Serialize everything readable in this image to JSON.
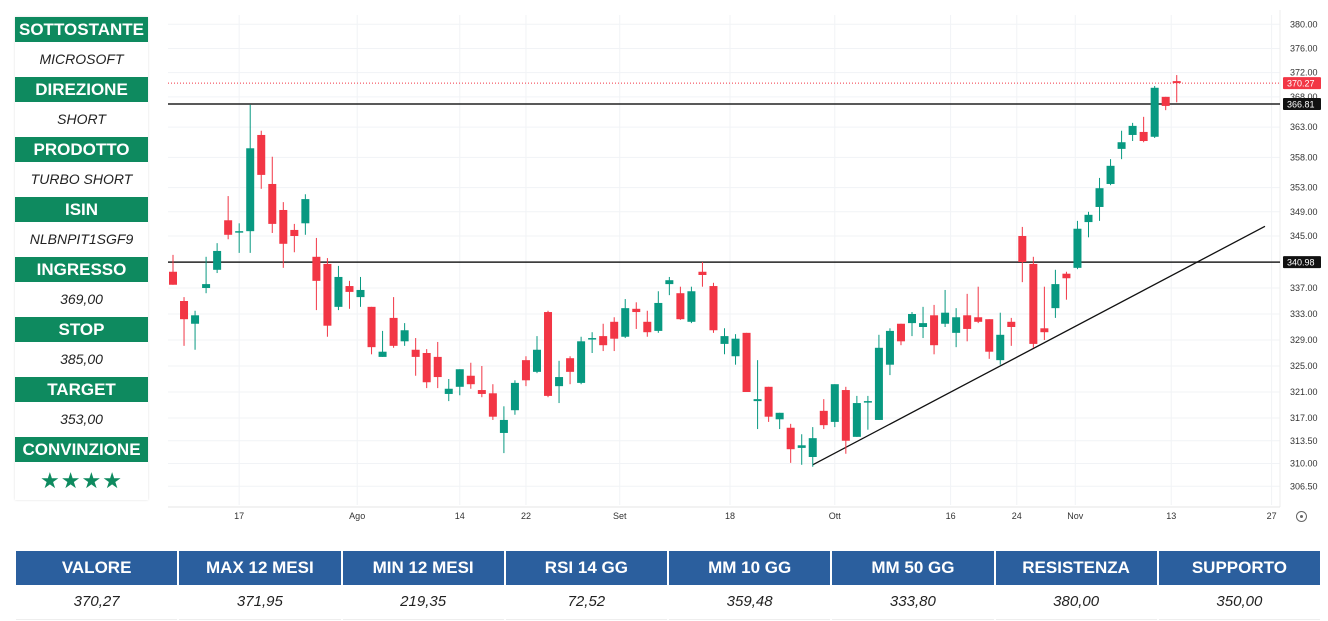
{
  "panel": [
    {
      "label": "SOTTOSTANTE",
      "value": "MICROSOFT"
    },
    {
      "label": "DIREZIONE",
      "value": "SHORT"
    },
    {
      "label": "PRODOTTO",
      "value": "TURBO SHORT"
    },
    {
      "label": "ISIN",
      "value": "NLBNPIT1SGF9"
    },
    {
      "label": "INGRESSO",
      "value": "369,00"
    },
    {
      "label": "STOP",
      "value": "385,00"
    },
    {
      "label": "TARGET",
      "value": "353,00"
    },
    {
      "label": "CONVINZIONE",
      "value": "★★★★"
    }
  ],
  "stats": [
    {
      "label": "VALORE",
      "value": "370,27"
    },
    {
      "label": "MAX 12 MESI",
      "value": "371,95"
    },
    {
      "label": "MIN 12 MESI",
      "value": "219,35"
    },
    {
      "label": "RSI 14 GG",
      "value": "72,52"
    },
    {
      "label": "MM 10 GG",
      "value": "359,48"
    },
    {
      "label": "MM 50 GG",
      "value": "333,80"
    },
    {
      "label": "RESISTENZA",
      "value": "380,00"
    },
    {
      "label": "SUPPORTO",
      "value": "350,00"
    }
  ],
  "chart_data": {
    "type": "candlestick",
    "colors": {
      "up": "#089981",
      "down": "#f23645",
      "line": "#222222",
      "last": "#f23645"
    },
    "y_ticks": [
      "380.00",
      "376.00",
      "372.00",
      "368.00",
      "363.00",
      "358.00",
      "353.00",
      "349.00",
      "345.00",
      "337.00",
      "333.00",
      "329.00",
      "325.00",
      "321.00",
      "317.00",
      "313.50",
      "310.00",
      "306.50"
    ],
    "x_ticks": [
      "17",
      "Ago",
      "14",
      "22",
      "Set",
      "18",
      "Ott",
      "16",
      "24",
      "Nov",
      "13",
      "27"
    ],
    "last_price": {
      "value": 370.27,
      "label": "370.27"
    },
    "levels": [
      {
        "value": 366.81,
        "label": "366.81"
      },
      {
        "value": 340.98,
        "label": "340.98"
      }
    ],
    "trendline": {
      "from": {
        "index": 58,
        "price": 309.8
      },
      "to": {
        "index": 99,
        "price": 346.6
      }
    },
    "ohlc": [
      [
        339.5,
        342.1,
        337.5,
        337.5
      ],
      [
        335.0,
        335.6,
        328.1,
        332.2
      ],
      [
        331.5,
        333.5,
        327.5,
        332.8
      ],
      [
        337.0,
        341.8,
        336.2,
        337.6
      ],
      [
        339.8,
        343.9,
        339.3,
        342.7
      ],
      [
        347.6,
        351.6,
        344.5,
        345.2
      ],
      [
        345.7,
        347.1,
        342.4,
        345.8
      ],
      [
        345.8,
        366.7,
        342.4,
        359.5
      ],
      [
        361.7,
        362.4,
        352.8,
        355.1
      ],
      [
        353.6,
        358.1,
        345.5,
        347.0
      ],
      [
        349.3,
        350.6,
        340.1,
        343.8
      ],
      [
        346.0,
        347.0,
        342.5,
        345.0
      ],
      [
        347.1,
        351.9,
        345.2,
        351.1
      ],
      [
        341.8,
        344.7,
        333.6,
        338.1
      ],
      [
        340.7,
        341.6,
        329.5,
        331.2
      ],
      [
        334.1,
        340.4,
        333.6,
        338.7
      ],
      [
        337.3,
        338.1,
        333.8,
        336.4
      ],
      [
        335.6,
        338.7,
        334.1,
        336.7
      ],
      [
        334.1,
        334.1,
        326.8,
        327.9
      ],
      [
        326.4,
        330.4,
        326.4,
        327.2
      ],
      [
        332.4,
        335.6,
        327.8,
        328.1
      ],
      [
        328.8,
        331.6,
        328.1,
        330.5
      ],
      [
        327.5,
        329.3,
        323.5,
        326.4
      ],
      [
        327.0,
        327.6,
        321.6,
        322.5
      ],
      [
        326.4,
        328.7,
        321.6,
        323.3
      ],
      [
        320.7,
        323.0,
        319.6,
        321.5
      ],
      [
        321.8,
        324.5,
        320.5,
        324.5
      ],
      [
        323.5,
        325.5,
        321.5,
        322.2
      ],
      [
        321.3,
        325.0,
        320.2,
        320.7
      ],
      [
        320.8,
        322.2,
        316.7,
        317.2
      ],
      [
        314.7,
        318.8,
        311.6,
        316.7
      ],
      [
        318.2,
        322.8,
        317.5,
        322.4
      ],
      [
        325.9,
        326.5,
        321.9,
        322.8
      ],
      [
        324.1,
        329.6,
        323.9,
        327.5
      ],
      [
        333.3,
        333.5,
        320.2,
        320.4
      ],
      [
        321.9,
        325.8,
        319.3,
        323.3
      ],
      [
        326.2,
        326.5,
        322.2,
        324.1
      ],
      [
        322.4,
        329.5,
        322.2,
        328.8
      ],
      [
        329.2,
        330.2,
        327.0,
        329.3
      ],
      [
        329.6,
        331.5,
        327.3,
        328.2
      ],
      [
        331.8,
        332.5,
        327.3,
        329.2
      ],
      [
        329.5,
        335.3,
        329.3,
        333.9
      ],
      [
        333.8,
        334.8,
        330.7,
        333.3
      ],
      [
        331.8,
        333.5,
        329.5,
        330.2
      ],
      [
        330.4,
        336.5,
        330.1,
        334.7
      ],
      [
        337.6,
        338.7,
        335.9,
        338.2
      ],
      [
        336.2,
        337.2,
        332.1,
        332.2
      ],
      [
        331.8,
        337.2,
        331.6,
        336.5
      ],
      [
        339.5,
        341.0,
        337.2,
        339.0
      ],
      [
        337.3,
        337.8,
        330.1,
        330.5
      ],
      [
        328.4,
        330.8,
        326.8,
        329.6
      ],
      [
        326.5,
        329.9,
        325.2,
        329.2
      ],
      [
        330.1,
        330.1,
        321.0,
        321.0
      ],
      [
        319.6,
        325.9,
        315.3,
        319.9
      ],
      [
        321.8,
        321.8,
        316.4,
        317.2
      ],
      [
        316.8,
        317.8,
        315.3,
        317.8
      ],
      [
        315.5,
        316.1,
        310.1,
        312.2
      ],
      [
        312.4,
        314.5,
        309.8,
        312.8
      ],
      [
        311.0,
        315.6,
        309.5,
        313.9
      ],
      [
        318.1,
        319.9,
        315.3,
        315.9
      ],
      [
        316.4,
        322.2,
        315.6,
        322.2
      ],
      [
        321.3,
        321.8,
        311.5,
        313.5
      ],
      [
        314.1,
        320.4,
        314.1,
        319.3
      ],
      [
        319.5,
        320.4,
        315.2,
        319.6
      ],
      [
        316.7,
        329.8,
        316.7,
        327.8
      ],
      [
        325.2,
        330.8,
        323.6,
        330.4
      ],
      [
        331.5,
        331.5,
        328.2,
        328.8
      ],
      [
        331.6,
        333.3,
        329.6,
        333.0
      ],
      [
        331.0,
        334.1,
        329.3,
        331.6
      ],
      [
        332.8,
        334.4,
        326.8,
        328.2
      ],
      [
        331.5,
        336.7,
        331.0,
        333.2
      ],
      [
        330.1,
        333.9,
        327.9,
        332.5
      ],
      [
        332.8,
        336.1,
        328.8,
        330.7
      ],
      [
        332.5,
        337.2,
        331.6,
        331.8
      ],
      [
        332.2,
        332.2,
        326.1,
        327.2
      ],
      [
        325.9,
        333.2,
        325.2,
        329.8
      ],
      [
        331.8,
        332.4,
        328.1,
        331.0
      ],
      [
        345.0,
        346.5,
        337.9,
        341.0
      ],
      [
        340.7,
        341.8,
        327.8,
        328.4
      ],
      [
        330.8,
        337.2,
        329.0,
        330.2
      ],
      [
        333.9,
        339.8,
        332.4,
        337.6
      ],
      [
        339.2,
        339.5,
        335.2,
        338.5
      ],
      [
        340.1,
        347.5,
        339.9,
        346.2
      ],
      [
        347.3,
        349.0,
        344.8,
        348.5
      ],
      [
        349.8,
        354.6,
        347.5,
        352.9
      ],
      [
        353.6,
        357.7,
        353.4,
        356.6
      ],
      [
        359.4,
        362.4,
        357.7,
        360.5
      ],
      [
        361.7,
        363.7,
        360.7,
        363.2
      ],
      [
        362.2,
        364.7,
        360.5,
        360.7
      ],
      [
        361.4,
        369.8,
        361.2,
        369.5
      ],
      [
        368.0,
        368.0,
        365.8,
        366.5
      ],
      [
        370.6,
        371.6,
        367.1,
        370.27
      ]
    ]
  }
}
